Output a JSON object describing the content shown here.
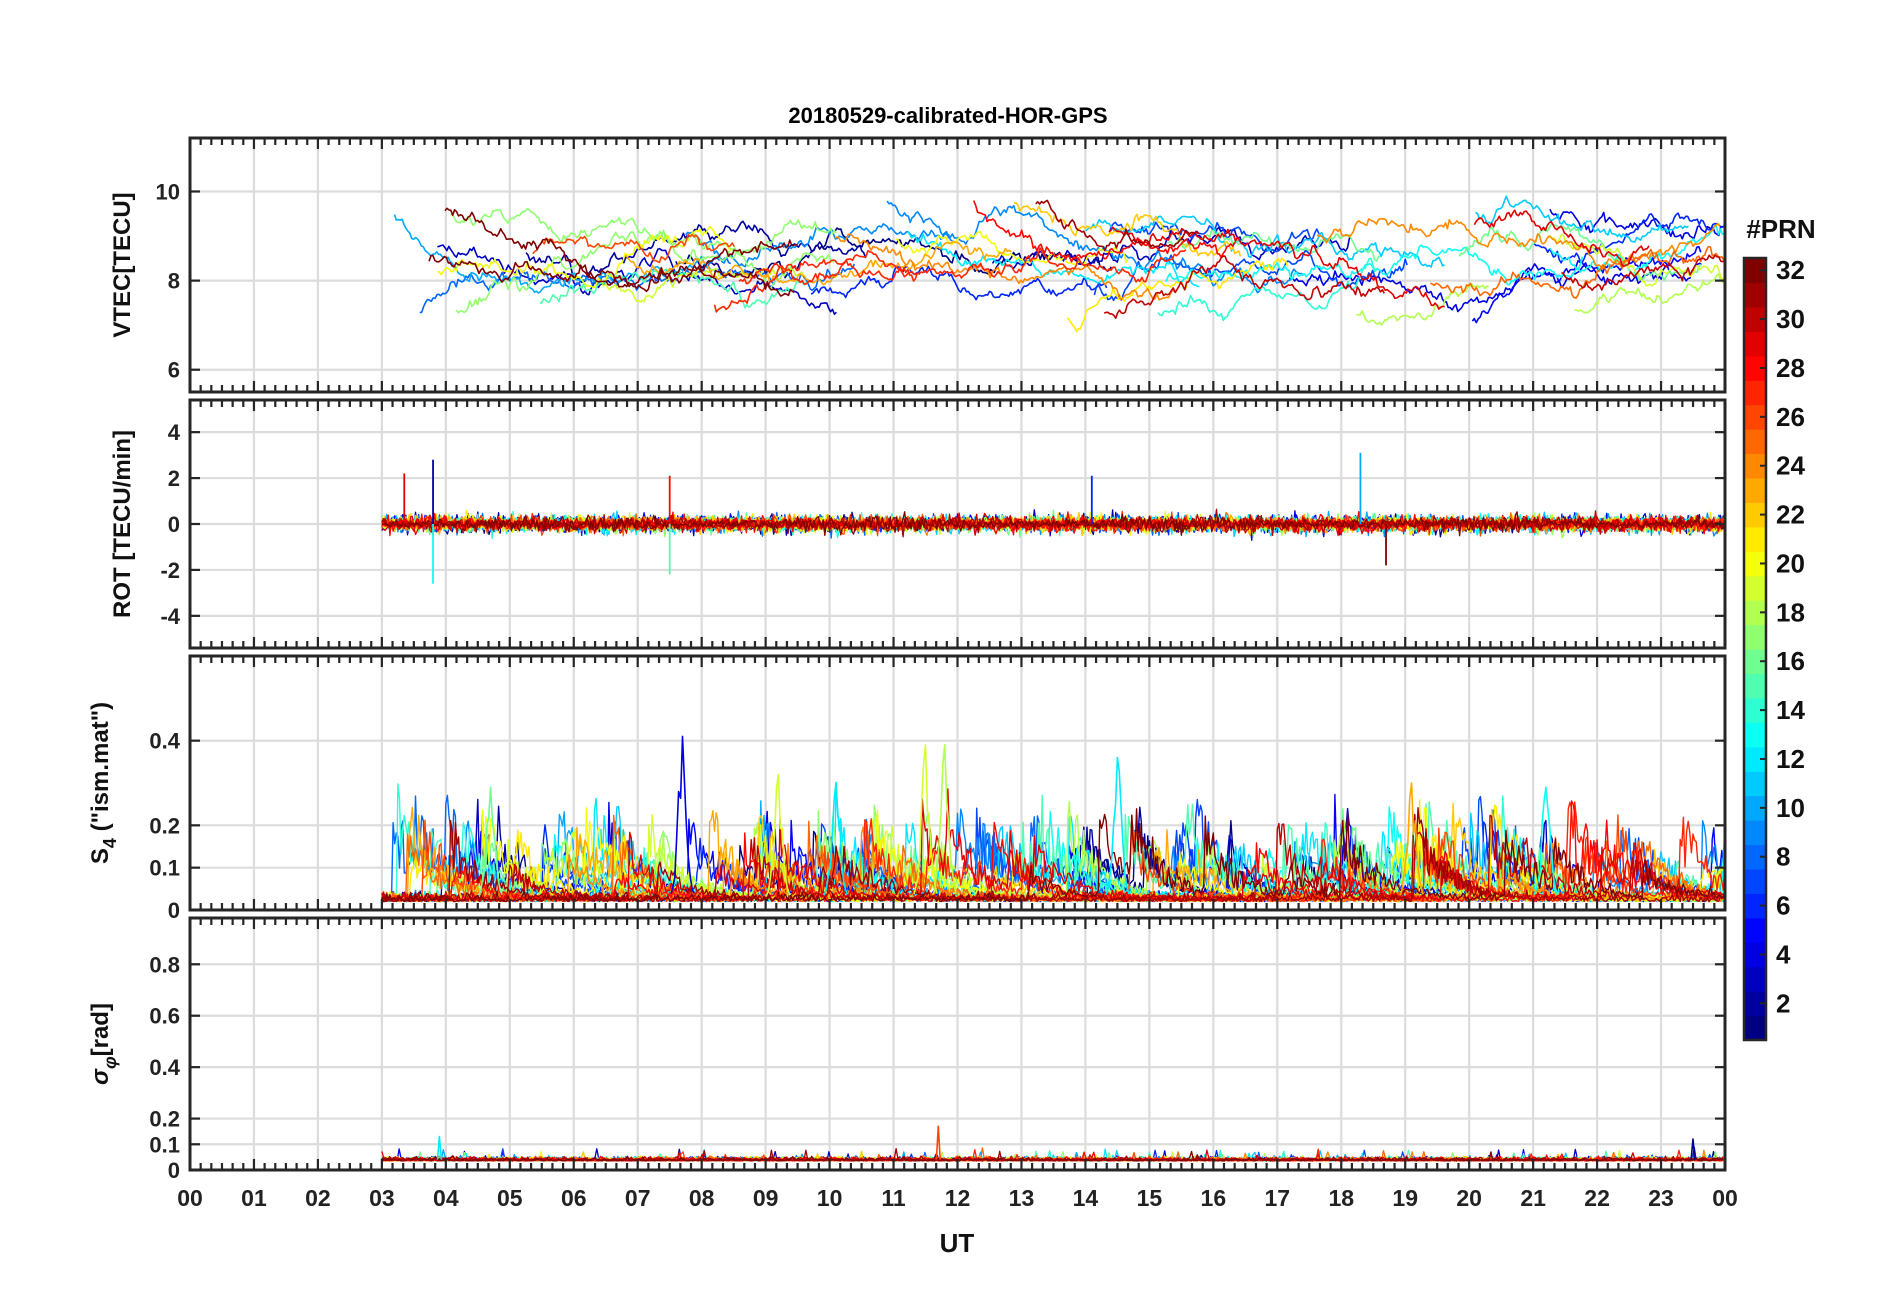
{
  "figure": {
    "title": "20180529-calibrated-HOR-GPS",
    "xlabel": "UT",
    "x_ticks": [
      "00",
      "01",
      "02",
      "03",
      "04",
      "05",
      "06",
      "07",
      "08",
      "09",
      "10",
      "11",
      "12",
      "13",
      "14",
      "15",
      "16",
      "17",
      "18",
      "19",
      "20",
      "21",
      "22",
      "23",
      "00"
    ]
  },
  "colorbar": {
    "title": "#PRN",
    "ticks": [
      "2",
      "4",
      "6",
      "8",
      "10",
      "12",
      "14",
      "16",
      "18",
      "20",
      "22",
      "24",
      "26",
      "28",
      "30",
      "32"
    ],
    "range": [
      1,
      32
    ],
    "colormap": "jet",
    "low_color": "#000080",
    "high_color": "#800000"
  },
  "chart_data": [
    {
      "type": "line",
      "panel": "VTEC",
      "ylabel": "VTEC[TECU]",
      "xlim": [
        0,
        24
      ],
      "ylim": [
        5.5,
        11.2
      ],
      "y_ticks": [
        "6",
        "8",
        "10"
      ],
      "y_tick_values": [
        6,
        8,
        10
      ],
      "data_start_hour": 3.0,
      "data_end_hour": 24.0,
      "typical_range": [
        6,
        11
      ],
      "series_by": "PRN (1-32)",
      "grid": true
    },
    {
      "type": "line",
      "panel": "ROT",
      "ylabel": "ROT [TECU/min]",
      "xlim": [
        0,
        24
      ],
      "ylim": [
        -5.4,
        5.4
      ],
      "y_ticks": [
        "-4",
        "-2",
        "0",
        "2",
        "4"
      ],
      "y_tick_values": [
        -4,
        -2,
        0,
        2,
        4
      ],
      "data_start_hour": 3.0,
      "data_end_hour": 24.0,
      "typical_range": [
        -0.5,
        0.5
      ],
      "spikes": [
        {
          "x": 3.8,
          "y": 2.8
        },
        {
          "x": 3.8,
          "y": -2.6
        },
        {
          "x": 3.35,
          "y": 2.2
        },
        {
          "x": 7.5,
          "y": 2.1
        },
        {
          "x": 7.5,
          "y": -2.2
        },
        {
          "x": 14.1,
          "y": 2.1
        },
        {
          "x": 18.3,
          "y": 3.1
        },
        {
          "x": 18.7,
          "y": -1.8
        }
      ],
      "series_by": "PRN (1-32)",
      "grid": true
    },
    {
      "type": "line",
      "panel": "S4",
      "ylabel": "S4 (\"ism.mat\")",
      "ylabel_main": "S",
      "ylabel_sub": "4",
      "ylabel_rest": " (\"ism.mat\")",
      "xlim": [
        0,
        24
      ],
      "ylim": [
        0,
        0.6
      ],
      "y_ticks": [
        "0",
        "0.1",
        "0.2",
        "0.4"
      ],
      "y_tick_values": [
        0,
        0.1,
        0.2,
        0.4
      ],
      "data_start_hour": 3.0,
      "data_end_hour": 24.0,
      "typical_range": [
        0.01,
        0.15
      ],
      "peaks": [
        {
          "x": 7.7,
          "y": 0.41
        },
        {
          "x": 11.5,
          "y": 0.39
        },
        {
          "x": 11.8,
          "y": 0.39
        },
        {
          "x": 14.5,
          "y": 0.36
        },
        {
          "x": 9.2,
          "y": 0.32
        },
        {
          "x": 10.1,
          "y": 0.3
        },
        {
          "x": 4.7,
          "y": 0.29
        },
        {
          "x": 19.1,
          "y": 0.3
        },
        {
          "x": 21.2,
          "y": 0.29
        }
      ],
      "series_by": "PRN (1-32)",
      "grid": true
    },
    {
      "type": "line",
      "panel": "sigma_phi",
      "ylabel": "σφ[rad]",
      "ylabel_main": "σ",
      "ylabel_sub": "φ",
      "ylabel_rest": "[rad]",
      "xlim": [
        0,
        24
      ],
      "ylim": [
        0,
        0.98
      ],
      "y_ticks": [
        "0",
        "0.1",
        "0.2",
        "0.4",
        "0.6",
        "0.8"
      ],
      "y_tick_values": [
        0,
        0.1,
        0.2,
        0.4,
        0.6,
        0.8
      ],
      "data_start_hour": 3.0,
      "data_end_hour": 24.0,
      "typical_range": [
        0.02,
        0.08
      ],
      "peaks": [
        {
          "x": 3.9,
          "y": 0.13
        },
        {
          "x": 11.7,
          "y": 0.17
        },
        {
          "x": 23.5,
          "y": 0.12
        }
      ],
      "series_by": "PRN (1-32)",
      "grid": true
    }
  ]
}
